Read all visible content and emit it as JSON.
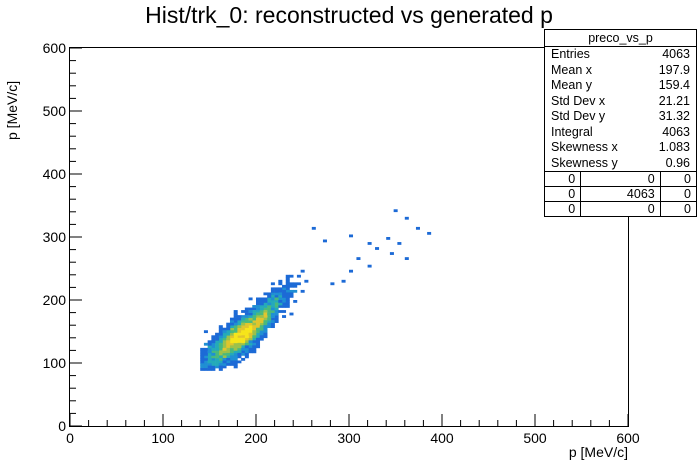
{
  "chart_data": {
    "type": "heatmap",
    "title": "Hist/trk_0: reconstructed vs generated p",
    "xlabel": "p [MeV/c]",
    "ylabel": "p [MeV/c]",
    "xlim": [
      0,
      600
    ],
    "ylim": [
      0,
      600
    ],
    "xticks": [
      0,
      100,
      200,
      300,
      400,
      500,
      600
    ],
    "yticks": [
      0,
      100,
      200,
      300,
      400,
      500,
      600
    ],
    "grid": false,
    "stats": {
      "name": "preco_vs_p",
      "rows": [
        {
          "label": "Entries",
          "value": "4063"
        },
        {
          "label": "Mean x",
          "value": "197.9"
        },
        {
          "label": "Mean y",
          "value": "159.4"
        },
        {
          "label": "Std Dev x",
          "value": "21.21"
        },
        {
          "label": "Std Dev y",
          "value": "31.32"
        },
        {
          "label": "Integral",
          "value": "4063"
        },
        {
          "label": "Skewness x",
          "value": "1.083"
        },
        {
          "label": "Skewness y",
          "value": "0.96"
        }
      ],
      "overflow_grid": [
        [
          "0",
          "0",
          "0"
        ],
        [
          "0",
          "4063",
          "0"
        ],
        [
          "0",
          "0",
          "0"
        ]
      ]
    },
    "distribution": {
      "entries": 4063,
      "mean_x": 197.9,
      "mean_y": 159.4,
      "std_x": 21.21,
      "std_y": 31.32,
      "outliers": [
        [
          262,
          312
        ],
        [
          275,
          295
        ],
        [
          300,
          300
        ],
        [
          320,
          290
        ],
        [
          350,
          340
        ],
        [
          360,
          330
        ],
        [
          372,
          312
        ],
        [
          385,
          305
        ],
        [
          340,
          298
        ],
        [
          355,
          290
        ],
        [
          330,
          282
        ],
        [
          345,
          275
        ],
        [
          360,
          265
        ],
        [
          310,
          265
        ],
        [
          320,
          255
        ],
        [
          300,
          245
        ],
        [
          295,
          230
        ],
        [
          283,
          225
        ]
      ]
    },
    "palette": [
      "#1f3fa8",
      "#1c6ad6",
      "#1f8fd3",
      "#24aab9",
      "#49b97d",
      "#9cc14b",
      "#e0c52d",
      "#f6e51a"
    ]
  }
}
